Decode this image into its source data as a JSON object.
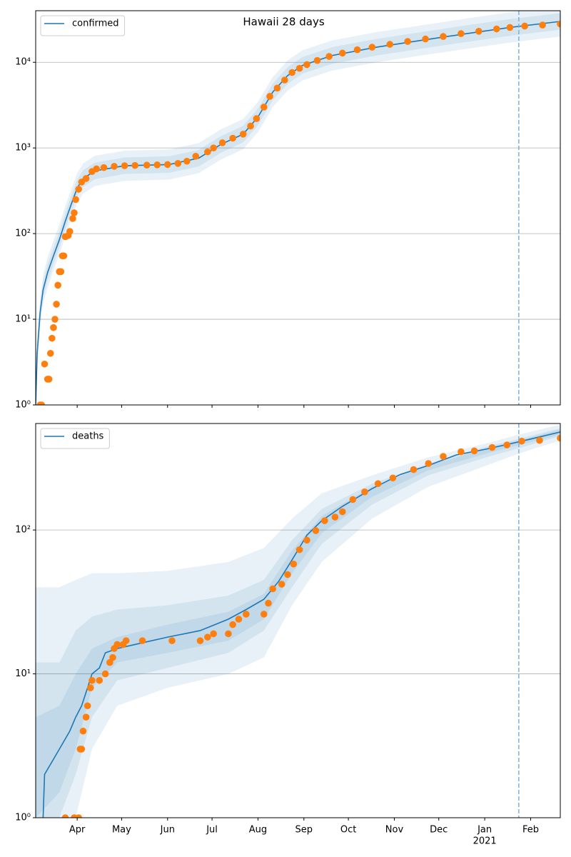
{
  "chart_data": [
    {
      "type": "line",
      "title": "Hawaii 28 days",
      "yscale": "log",
      "grid": true,
      "legend": "upper left",
      "xlim": [
        0,
        354
      ],
      "ylim": [
        1,
        40000
      ],
      "xticks": [
        28,
        58,
        89,
        119,
        150,
        181,
        211,
        242,
        272,
        303,
        334
      ],
      "yticks": [
        {
          "value": 1,
          "label": "10⁰"
        },
        {
          "value": 10,
          "label": "10¹"
        },
        {
          "value": 100,
          "label": "10²"
        },
        {
          "value": 1000,
          "label": "10³"
        },
        {
          "value": 10000,
          "label": "10⁴"
        }
      ],
      "vline": 326,
      "vline_color": "#7fb1d4",
      "bands": [
        {
          "color": "#1f77b4",
          "x": [
            0,
            1,
            3,
            5,
            8,
            12,
            16,
            20,
            24,
            28,
            32,
            40,
            60,
            90,
            110,
            125,
            140,
            150,
            160,
            170,
            180,
            200,
            230,
            260,
            290,
            320,
            354
          ],
          "lower": [
            1,
            2.7,
            8,
            15,
            23,
            37,
            57,
            93,
            147,
            227,
            293,
            360,
            413,
            427,
            507,
            733,
            967,
            1530,
            3000,
            4670,
            6130,
            8000,
            10000,
            12000,
            14300,
            17000,
            20000
          ],
          "upper": [
            1,
            6,
            18,
            33,
            53,
            83,
            128,
            210,
            330,
            510,
            660,
            810,
            930,
            960,
            1140,
            1650,
            2180,
            3450,
            6750,
            10500,
            13800,
            18000,
            22500,
            27000,
            32300,
            38300,
            45000
          ]
        },
        {
          "color": "#1f77b4",
          "x": [
            0,
            1,
            3,
            5,
            8,
            12,
            16,
            20,
            24,
            28,
            32,
            40,
            60,
            90,
            110,
            125,
            140,
            150,
            160,
            170,
            180,
            200,
            230,
            260,
            290,
            320,
            354
          ],
          "lower": [
            1,
            3.2,
            9.6,
            17.6,
            28,
            44,
            68,
            112,
            176,
            272,
            352,
            432,
            496,
            512,
            608,
            880,
            1160,
            1840,
            3600,
            5600,
            7360,
            9600,
            12000,
            14400,
            17200,
            20400,
            24000
          ],
          "upper": [
            1,
            5,
            15,
            27.5,
            43.8,
            68.8,
            106,
            175,
            275,
            425,
            550,
            675,
            775,
            800,
            950,
            1375,
            1810,
            2880,
            5630,
            8750,
            11500,
            15000,
            18750,
            22500,
            26900,
            31900,
            37500
          ]
        }
      ],
      "series": [
        {
          "name": "confirmed",
          "color": "#1f77b4",
          "x": [
            0,
            1,
            3,
            5,
            8,
            12,
            16,
            20,
            24,
            28,
            32,
            40,
            60,
            90,
            110,
            125,
            140,
            150,
            160,
            170,
            180,
            200,
            230,
            260,
            290,
            320,
            354
          ],
          "values": [
            1,
            4,
            12,
            22,
            35,
            55,
            85,
            140,
            220,
            340,
            440,
            540,
            620,
            640,
            760,
            1100,
            1450,
            2300,
            4500,
            7000,
            9200,
            12000,
            15000,
            18000,
            21500,
            25500,
            30000
          ]
        },
        {
          "color": "#ff7f0e",
          "marker": "o",
          "x": [
            3,
            4,
            6,
            8,
            9,
            10,
            11,
            12,
            13,
            14,
            15,
            16,
            17,
            18,
            19,
            20,
            22,
            23,
            25,
            26,
            27,
            29,
            31,
            34,
            38,
            41,
            46,
            53,
            60,
            67,
            75,
            82,
            89,
            96,
            102,
            108,
            116,
            120,
            126,
            133,
            140,
            145,
            149,
            154,
            158,
            163,
            168,
            173,
            178,
            183,
            190,
            198,
            207,
            217,
            227,
            239,
            251,
            263,
            275,
            287,
            299,
            311,
            320,
            330,
            342,
            354
          ],
          "values": [
            1,
            1,
            3,
            2,
            2,
            4,
            6,
            8,
            10,
            15,
            25,
            36,
            36,
            55,
            55,
            92,
            95,
            106,
            150,
            175,
            250,
            330,
            400,
            440,
            530,
            570,
            590,
            610,
            620,
            625,
            630,
            635,
            640,
            660,
            700,
            800,
            900,
            1000,
            1150,
            1300,
            1450,
            1800,
            2200,
            3000,
            4000,
            5000,
            6200,
            7600,
            8500,
            9400,
            10500,
            11700,
            12800,
            14000,
            15000,
            16200,
            17500,
            18700,
            20000,
            21600,
            23000,
            24500,
            25500,
            26500,
            27200,
            28000
          ]
        }
      ]
    },
    {
      "type": "line",
      "yscale": "log",
      "grid": true,
      "legend": "upper left",
      "xlim": [
        0,
        354
      ],
      "ylim": [
        1,
        550
      ],
      "xticks": [
        {
          "value": 28,
          "label": "Apr"
        },
        {
          "value": 58,
          "label": "May"
        },
        {
          "value": 89,
          "label": "Jun"
        },
        {
          "value": 119,
          "label": "Jul"
        },
        {
          "value": 150,
          "label": "Aug"
        },
        {
          "value": 181,
          "label": "Sep"
        },
        {
          "value": 211,
          "label": "Oct"
        },
        {
          "value": 242,
          "label": "Nov"
        },
        {
          "value": 272,
          "label": "Dec"
        },
        {
          "value": 303,
          "label": "Jan",
          "sublabel": "2021"
        },
        {
          "value": 334,
          "label": "Feb"
        }
      ],
      "yticks": [
        {
          "value": 1,
          "label": "10⁰"
        },
        {
          "value": 10,
          "label": "10¹"
        },
        {
          "value": 100,
          "label": "10²"
        }
      ],
      "vline": 326,
      "vline_color": "#7fb1d4",
      "bands": [
        {
          "color": "#1f77b4",
          "x": [
            0,
            16,
            27,
            38,
            55,
            89,
            130,
            154,
            173,
            193,
            227,
            265,
            304,
            326,
            354
          ],
          "lower": [
            1,
            1,
            1,
            3,
            6,
            8,
            10,
            13,
            30,
            60,
            120,
            200,
            280,
            340,
            420
          ],
          "upper": [
            40,
            40,
            45,
            50,
            50,
            52,
            60,
            75,
            120,
            180,
            240,
            320,
            400,
            460,
            540
          ]
        },
        {
          "color": "#1f77b4",
          "x": [
            0,
            16,
            27,
            38,
            55,
            89,
            130,
            154,
            173,
            193,
            227,
            265,
            304,
            326,
            354
          ],
          "lower": [
            1,
            1,
            2,
            5,
            9,
            11,
            14,
            20,
            40,
            80,
            150,
            240,
            320,
            370,
            450
          ],
          "upper": [
            12,
            12,
            20,
            25,
            28,
            30,
            35,
            45,
            85,
            140,
            210,
            290,
            380,
            430,
            510
          ]
        },
        {
          "color": "#1f77b4",
          "x": [
            0,
            16,
            27,
            38,
            55,
            89,
            130,
            154,
            173,
            193,
            227,
            265,
            304,
            326,
            354
          ],
          "lower": [
            1,
            1.5,
            3,
            8,
            12,
            14,
            17,
            24,
            50,
            95,
            170,
            260,
            340,
            390,
            460
          ],
          "upper": [
            5,
            6,
            10,
            15,
            18,
            22,
            27,
            36,
            72,
            125,
            200,
            280,
            370,
            420,
            500
          ]
        }
      ],
      "series": [
        {
          "name": "deaths",
          "color": "#1f77b4",
          "x": [
            5,
            6,
            16,
            23,
            27,
            31,
            35,
            38,
            43,
            47,
            55,
            67,
            89,
            111,
            130,
            142,
            154,
            164,
            173,
            183,
            193,
            207,
            227,
            246,
            265,
            284,
            304,
            326,
            354
          ],
          "values": [
            1,
            2,
            3,
            4,
            5,
            6,
            8,
            10,
            11,
            14,
            15,
            16,
            18,
            20,
            24,
            28,
            33,
            44,
            62,
            92,
            116,
            146,
            194,
            243,
            281,
            333,
            365,
            410,
            480
          ]
        },
        {
          "color": "#ff7f0e",
          "marker": "o",
          "x": [
            20,
            26,
            29,
            30,
            31,
            32,
            34,
            35,
            37,
            38,
            43,
            47,
            50,
            52,
            53,
            55,
            59,
            61,
            72,
            92,
            111,
            116,
            120,
            130,
            133,
            137,
            142,
            154,
            157,
            160,
            166,
            170,
            174,
            178,
            183,
            189,
            195,
            202,
            207,
            214,
            222,
            231,
            241,
            255,
            265,
            275,
            287,
            296,
            308,
            318,
            328,
            340,
            354
          ],
          "values": [
            1,
            1,
            1,
            3,
            3,
            4,
            5,
            6,
            8,
            9,
            9,
            10,
            12,
            13,
            15,
            16,
            16,
            17,
            17,
            17,
            17,
            18,
            19,
            19,
            22,
            24,
            26,
            26,
            31,
            39,
            42,
            49,
            58,
            73,
            85,
            99,
            116,
            123,
            134,
            163,
            184,
            210,
            230,
            263,
            290,
            325,
            350,
            355,
            375,
            390,
            415,
            420,
            435
          ]
        }
      ]
    }
  ]
}
